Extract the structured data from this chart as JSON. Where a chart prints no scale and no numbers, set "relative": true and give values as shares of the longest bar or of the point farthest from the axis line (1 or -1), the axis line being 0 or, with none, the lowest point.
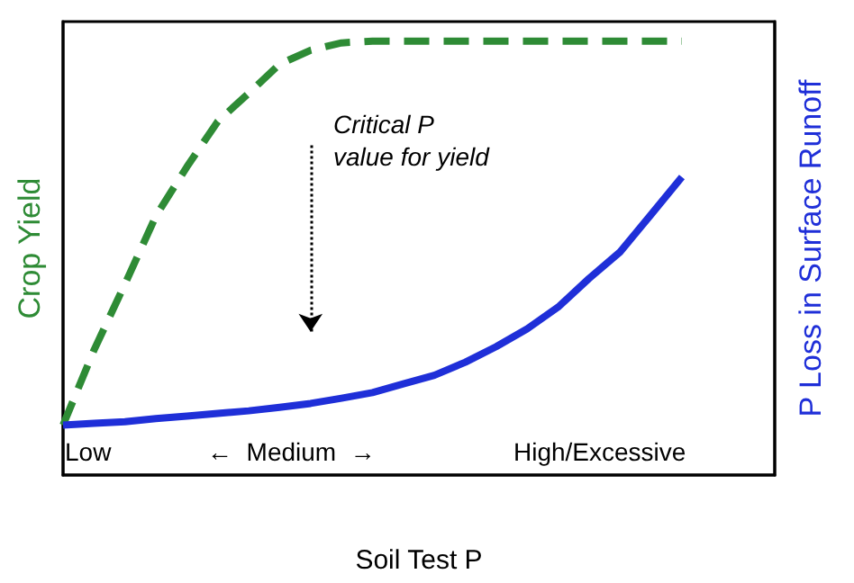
{
  "chart_data": {
    "type": "line",
    "relative": true,
    "xlabel": "Soil Test P",
    "ylabel": "Crop Yield",
    "y2label": "P Loss in Surface Runoff",
    "categories": [
      null,
      null,
      null,
      null,
      null,
      null,
      null,
      null,
      null,
      null,
      null,
      null,
      null,
      null,
      null,
      null,
      null,
      null,
      null,
      null,
      null,
      null,
      null,
      null
    ],
    "series": [
      {
        "color": "#2e8b35",
        "line_style": "dashed",
        "values": [
          0.115,
          0.288,
          0.44,
          0.597,
          0.71,
          0.815,
          0.88,
          0.947,
          0.979,
          0.996,
          1,
          1,
          1,
          1,
          1,
          1,
          1,
          1,
          1,
          1,
          1,
          null,
          null,
          null
        ]
      },
      {
        "color": "#1f2fd8",
        "line_style": "solid",
        "values": [
          0.115,
          0.119,
          0.123,
          0.13,
          0.136,
          0.142,
          0.148,
          0.156,
          0.165,
          0.177,
          0.19,
          0.21,
          0.23,
          0.26,
          0.296,
          0.337,
          0.387,
          0.453,
          0.514,
          0.6,
          0.687,
          null,
          null,
          null
        ]
      }
    ],
    "annotations": [
      "Critical P\nvalue for yield",
      "Low",
      "←  Medium  →",
      "High/Excessive"
    ],
    "grid": false,
    "marker": "none"
  }
}
